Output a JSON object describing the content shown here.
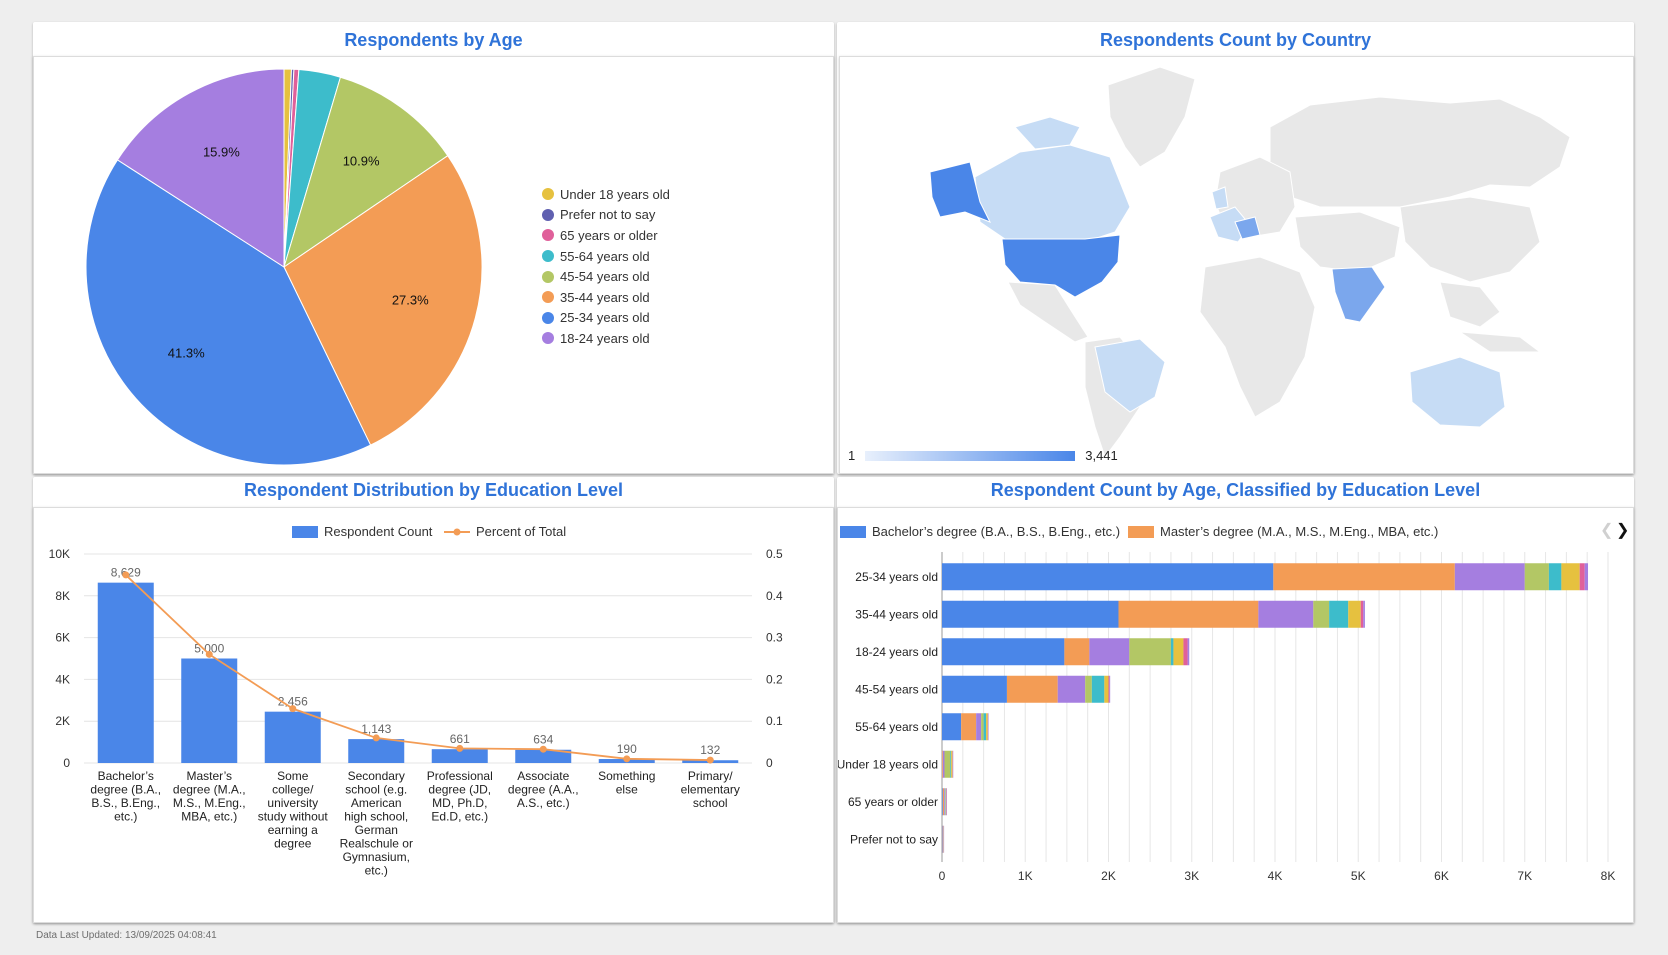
{
  "panels": {
    "age": {
      "title": "Respondents by Age",
      "legend": [
        {
          "label": "Under 18 years old",
          "color": "#e6c13f"
        },
        {
          "label": "Prefer not to say",
          "color": "#6060b0"
        },
        {
          "label": "65 years or older",
          "color": "#e0609a"
        },
        {
          "label": "55-64 years old",
          "color": "#3dbccb"
        },
        {
          "label": "45-54 years old",
          "color": "#b3c765"
        },
        {
          "label": "35-44 years old",
          "color": "#f39c55"
        },
        {
          "label": "25-34 years old",
          "color": "#4a86e8"
        },
        {
          "label": "18-24 years old",
          "color": "#a57ee0"
        }
      ]
    },
    "country": {
      "title": "Respondents Count by Country",
      "scale_min": "1",
      "scale_max": "3,441"
    },
    "education": {
      "title": "Respondent Distribution by Education Level",
      "legend_bar": "Respondent Count",
      "legend_line": "Percent of Total"
    },
    "age_edu": {
      "title": "Respondent Count by Age, Classified by Education Level",
      "legend": [
        {
          "label": "Bachelor’s degree (B.A., B.S., B.Eng., etc.)",
          "color": "#4a86e8"
        },
        {
          "label": "Master’s degree (M.A., M.S., M.Eng., MBA, etc.)",
          "color": "#f39c55"
        }
      ]
    }
  },
  "footer": "Data Last Updated: 13/09/2025 04:08:41",
  "chart_data": [
    {
      "type": "pie",
      "title": "Respondents by Age",
      "slices": [
        {
          "label": "Under 18 years old",
          "value": 0.6,
          "color": "#e6c13f"
        },
        {
          "label": "Prefer not to say",
          "value": 0.2,
          "color": "#6060b0"
        },
        {
          "label": "65 years or older",
          "value": 0.4,
          "color": "#e0609a"
        },
        {
          "label": "55-64 years old",
          "value": 3.4,
          "color": "#3dbccb"
        },
        {
          "label": "45-54 years old",
          "value": 10.9,
          "color": "#b3c765"
        },
        {
          "label": "35-44 years old",
          "value": 27.3,
          "color": "#f39c55"
        },
        {
          "label": "25-34 years old",
          "value": 41.3,
          "color": "#4a86e8"
        },
        {
          "label": "18-24 years old",
          "value": 15.9,
          "color": "#a57ee0"
        }
      ],
      "data_labels": {
        "45-54 years old": "10.9%",
        "35-44 years old": "27.3%",
        "25-34 years old": "41.3%",
        "18-24 years old": "15.9%"
      },
      "legend_position": "right"
    },
    {
      "type": "bar",
      "title": "Respondent Distribution by Education Level",
      "categories": [
        "Bachelor’s degree (B.A., B.S., B.Eng., etc.)",
        "Master’s degree (M.A., M.S., M.Eng., MBA, etc.)",
        "Some college/ university study without earning a degree",
        "Secondary school (e.g. American high school, German Realschule or Gymnasium, etc.)",
        "Professional degree (JD, MD, Ph.D, Ed.D, etc.)",
        "Associate degree (A.A., A.S., etc.)",
        "Something else",
        "Primary/ elementary school"
      ],
      "category_lines": [
        [
          "Bachelor’s",
          "degree (B.A.,",
          "B.S., B.Eng.,",
          "etc.)"
        ],
        [
          "Master’s",
          "degree (M.A.,",
          "M.S., M.Eng.,",
          "MBA, etc.)"
        ],
        [
          "Some",
          "college/",
          "university",
          "study without",
          "earning a",
          "degree"
        ],
        [
          "Secondary",
          "school (e.g.",
          "American",
          "high school,",
          "German",
          "Realschule or",
          "Gymnasium,",
          "etc.)"
        ],
        [
          "Professional",
          "degree (JD,",
          "MD, Ph.D,",
          "Ed.D, etc.)"
        ],
        [
          "Associate",
          "degree (A.A.,",
          "A.S., etc.)"
        ],
        [
          "Something",
          "else"
        ],
        [
          "Primary/",
          "elementary",
          "school"
        ]
      ],
      "series": [
        {
          "name": "Respondent Count",
          "type": "bar",
          "values": [
            8629,
            5000,
            2456,
            1143,
            661,
            634,
            190,
            132
          ],
          "labels": [
            "8,629",
            "5,000",
            "2,456",
            "1,143",
            "661",
            "634",
            "190",
            "132"
          ],
          "color": "#4a86e8"
        },
        {
          "name": "Percent of Total",
          "type": "line",
          "values": [
            0.45,
            0.26,
            0.13,
            0.06,
            0.035,
            0.033,
            0.01,
            0.007
          ],
          "color": "#f39c55"
        }
      ],
      "ylim": [
        0,
        10000
      ],
      "y_ticks": [
        "0",
        "2K",
        "4K",
        "6K",
        "8K",
        "10K"
      ],
      "y2lim": [
        0,
        0.5
      ],
      "y2_ticks": [
        "0",
        "0.1",
        "0.2",
        "0.3",
        "0.4",
        "0.5"
      ],
      "legend_position": "top"
    },
    {
      "type": "bar",
      "orientation": "horizontal",
      "stacked": true,
      "title": "Respondent Count by Age, Classified by Education Level",
      "categories": [
        "25-34 years old",
        "35-44 years old",
        "18-24 years old",
        "45-54 years old",
        "55-64 years old",
        "Under 18 years old",
        "65 years or older",
        "Prefer not to say"
      ],
      "series": [
        {
          "name": "Bachelor’s degree (B.A., B.S., B.Eng., etc.)",
          "color": "#4a86e8",
          "values": [
            3980,
            2120,
            1470,
            780,
            230,
            0,
            10,
            5
          ]
        },
        {
          "name": "Master’s degree (M.A., M.S., M.Eng., MBA, etc.)",
          "color": "#f39c55",
          "values": [
            2180,
            1680,
            300,
            610,
            180,
            10,
            15,
            5
          ]
        },
        {
          "color": "#a57ee0",
          "values": [
            840,
            660,
            480,
            330,
            60,
            20,
            10,
            5
          ]
        },
        {
          "color": "#b3c765",
          "values": [
            290,
            190,
            500,
            80,
            30,
            70,
            5,
            0
          ]
        },
        {
          "color": "#3dbccb",
          "values": [
            150,
            230,
            30,
            150,
            30,
            10,
            5,
            0
          ]
        },
        {
          "color": "#e6c13f",
          "values": [
            220,
            150,
            120,
            50,
            20,
            15,
            5,
            5
          ]
        },
        {
          "color": "#e0609a",
          "values": [
            60,
            30,
            50,
            10,
            5,
            5,
            5,
            0
          ]
        },
        {
          "color": "#a57ee0",
          "values": [
            40,
            20,
            20,
            10,
            5,
            5,
            5,
            5
          ]
        }
      ],
      "xlim": [
        0,
        8000
      ],
      "x_ticks": [
        "0",
        "1K",
        "2K",
        "3K",
        "4K",
        "5K",
        "6K",
        "7K",
        "8K"
      ],
      "legend_position": "top"
    }
  ]
}
